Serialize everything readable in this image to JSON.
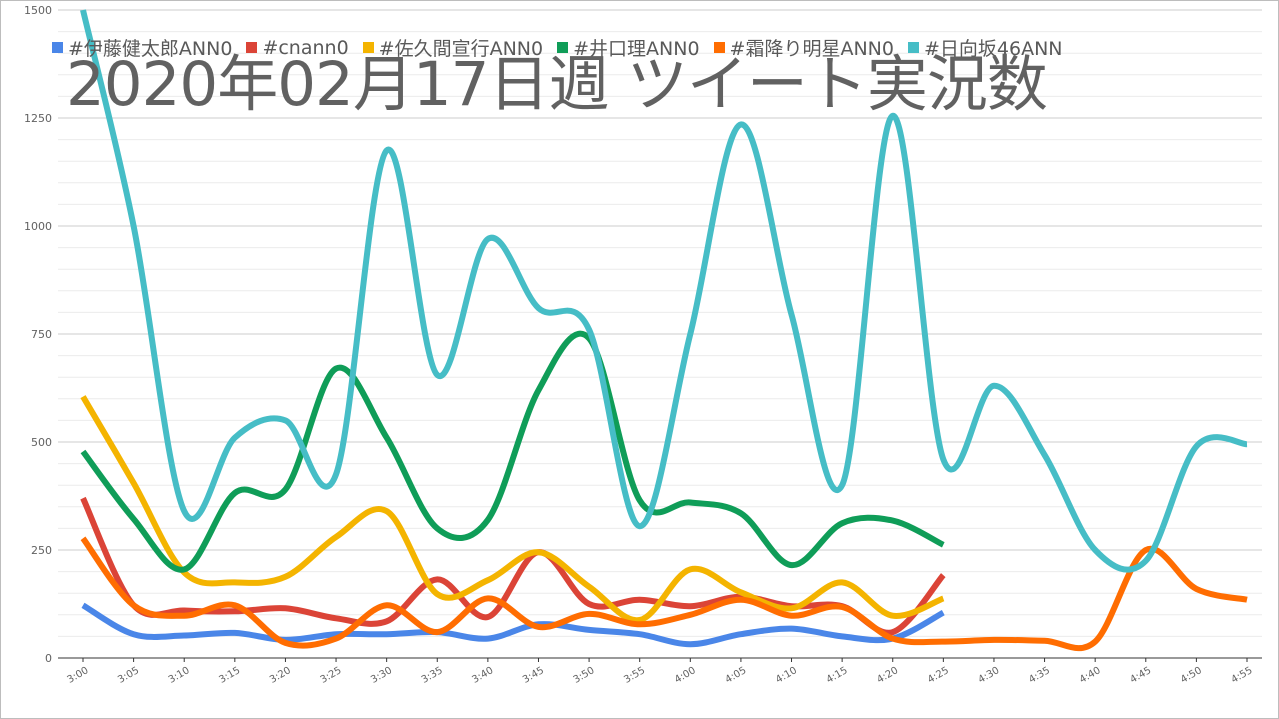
{
  "chart_data": {
    "type": "line",
    "title": "2020年02月17日週 ツイート実況数",
    "xlabel": "",
    "ylabel": "",
    "ylim": [
      0,
      1500
    ],
    "yticks": [
      0,
      250,
      500,
      750,
      1000,
      1250,
      1500
    ],
    "grid": true,
    "legend_position": "top",
    "categories": [
      "3:00",
      "3:05",
      "3:10",
      "3:15",
      "3:20",
      "3:25",
      "3:30",
      "3:35",
      "3:40",
      "3:45",
      "3:50",
      "3:55",
      "4:00",
      "4:05",
      "4:10",
      "4:15",
      "4:20",
      "4:25",
      "4:30",
      "4:35",
      "4:40",
      "4:45",
      "4:50",
      "4:55"
    ],
    "series": [
      {
        "name": "#伊藤健太郎ANN0",
        "color": "#4a86e8",
        "values": [
          122,
          55,
          52,
          58,
          42,
          55,
          55,
          60,
          45,
          78,
          65,
          55,
          32,
          55,
          68,
          50,
          45,
          105,
          null,
          null,
          null,
          null,
          null,
          null
        ]
      },
      {
        "name": "#cnann0",
        "color": "#db4437",
        "values": [
          370,
          122,
          110,
          108,
          115,
          92,
          85,
          182,
          95,
          245,
          125,
          135,
          120,
          142,
          120,
          120,
          60,
          192,
          null,
          null,
          null,
          null,
          null,
          null
        ]
      },
      {
        "name": "#佐久間宣行ANN0",
        "color": "#f4b400",
        "values": [
          605,
          405,
          198,
          175,
          188,
          280,
          340,
          148,
          180,
          245,
          165,
          88,
          205,
          152,
          115,
          175,
          98,
          138,
          null,
          null,
          null,
          null,
          null,
          null
        ]
      },
      {
        "name": "#井口理ANN0",
        "color": "#0f9d58",
        "values": [
          478,
          322,
          205,
          382,
          390,
          670,
          510,
          300,
          320,
          620,
          740,
          365,
          360,
          335,
          215,
          312,
          318,
          262,
          null,
          null,
          null,
          null,
          null,
          null
        ]
      },
      {
        "name": "#霜降り明星ANN0",
        "color": "#ff6d01",
        "values": [
          277,
          122,
          98,
          122,
          35,
          45,
          122,
          60,
          138,
          72,
          102,
          78,
          100,
          135,
          98,
          118,
          45,
          38,
          42,
          40,
          38,
          250,
          160,
          135
        ]
      },
      {
        "name": "#日向坂46ANN",
        "color": "#46bdc6",
        "values": [
          1500,
          1000,
          340,
          510,
          550,
          425,
          1175,
          655,
          970,
          810,
          760,
          305,
          750,
          1235,
          795,
          400,
          1255,
          460,
          630,
          470,
          250,
          225,
          490,
          495
        ]
      }
    ]
  }
}
